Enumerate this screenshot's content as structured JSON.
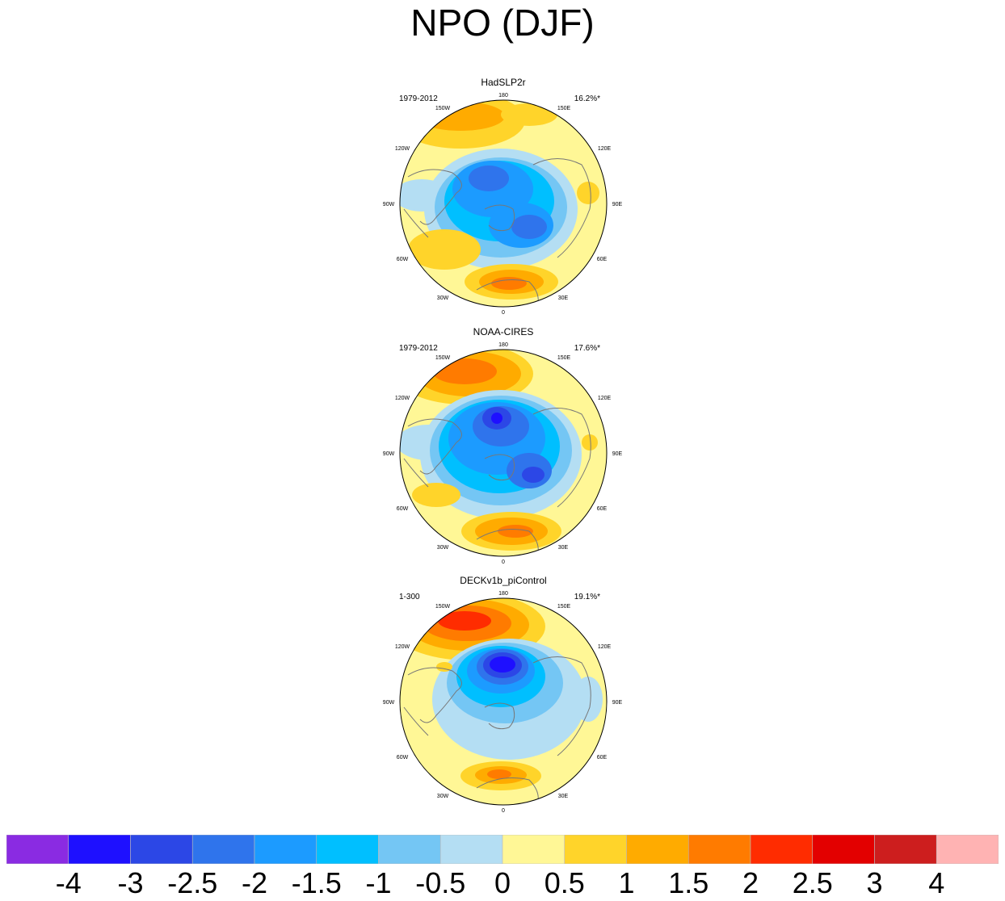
{
  "title": "NPO (DJF)",
  "panels": [
    {
      "name": "HadSLP2r",
      "period": "1979-2012",
      "pct": "16.2%*"
    },
    {
      "name": "NOAA-CIRES",
      "period": "1979-2012",
      "pct": "17.6%*"
    },
    {
      "name": "DECKv1b_piControl",
      "period": "1-300",
      "pct": "19.1%*"
    }
  ],
  "lon_labels": {
    "l180": "180",
    "l150w": "150W",
    "l150e": "150E",
    "l120w": "120W",
    "l120e": "120E",
    "l90w": "90W",
    "l90e": "90E",
    "l60w": "60W",
    "l60e": "60E",
    "l30w": "30W",
    "l30e": "30E",
    "l0": "0"
  },
  "colorbar": {
    "colors": [
      "#8a2be2",
      "#1e10ff",
      "#2c47e6",
      "#2f74ec",
      "#1c9bff",
      "#00bfff",
      "#74c6f4",
      "#b4def3",
      "#fff796",
      "#ffd42a",
      "#ffab00",
      "#ff7b00",
      "#ff2c00",
      "#e30000",
      "#cd1e1e",
      "#ffb3b3"
    ],
    "labels": [
      "-4",
      "-3",
      "-2.5",
      "-2",
      "-1.5",
      "-1",
      "-0.5",
      "0",
      "0.5",
      "1",
      "1.5",
      "2",
      "2.5",
      "3",
      "4"
    ]
  }
}
